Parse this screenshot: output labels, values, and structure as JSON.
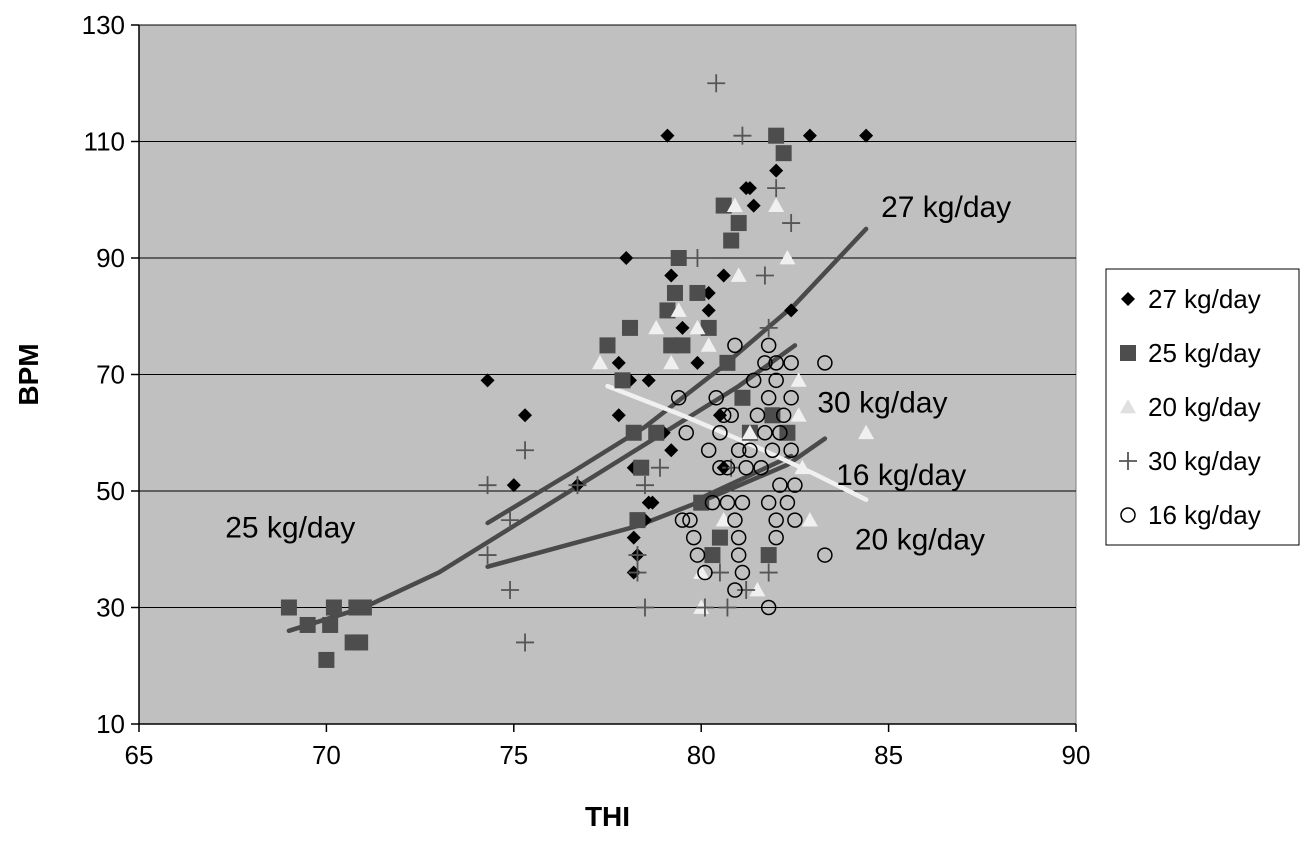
{
  "chart_data": {
    "type": "scatter",
    "title": "",
    "xlabel": "THI",
    "ylabel": "BPM",
    "xlim": [
      65,
      90
    ],
    "ylim": [
      10,
      130
    ],
    "x_ticks": [
      65,
      70,
      75,
      80,
      85,
      90
    ],
    "y_ticks": [
      10,
      30,
      50,
      70,
      90,
      110,
      130
    ],
    "grid": "horizontal",
    "legend_position": "right",
    "plot_background": "#c0c0c0",
    "series": [
      {
        "name": "27 kg/day",
        "marker": "diamond",
        "color": "#000000",
        "points": [
          [
            74.3,
            69
          ],
          [
            75,
            51
          ],
          [
            75.3,
            63
          ],
          [
            76.7,
            51
          ],
          [
            77.8,
            63
          ],
          [
            77.8,
            72
          ],
          [
            78,
            90
          ],
          [
            78.1,
            69
          ],
          [
            78.2,
            54
          ],
          [
            78.2,
            42
          ],
          [
            78.2,
            36
          ],
          [
            78.3,
            39
          ],
          [
            78.5,
            45
          ],
          [
            78.6,
            69
          ],
          [
            78.6,
            48
          ],
          [
            78.7,
            48
          ],
          [
            79,
            60
          ],
          [
            79.1,
            111
          ],
          [
            79.2,
            57
          ],
          [
            79.2,
            87
          ],
          [
            79.5,
            78
          ],
          [
            79.9,
            72
          ],
          [
            80.2,
            84
          ],
          [
            80.2,
            81
          ],
          [
            80.5,
            63
          ],
          [
            80.6,
            87
          ],
          [
            80.6,
            54
          ],
          [
            81.2,
            102
          ],
          [
            81.3,
            102
          ],
          [
            81.4,
            99
          ],
          [
            82,
            105
          ],
          [
            82.4,
            81
          ],
          [
            82.9,
            111
          ],
          [
            84.4,
            111
          ]
        ]
      },
      {
        "name": "25 kg/day",
        "marker": "square",
        "color": "#4d4d4d",
        "points": [
          [
            69,
            30
          ],
          [
            69.5,
            27
          ],
          [
            70,
            21
          ],
          [
            70.1,
            27
          ],
          [
            70.2,
            30
          ],
          [
            70.7,
            24
          ],
          [
            70.8,
            30
          ],
          [
            70.9,
            24
          ],
          [
            71,
            30
          ],
          [
            77.5,
            75
          ],
          [
            77.9,
            69
          ],
          [
            78.1,
            78
          ],
          [
            78.2,
            60
          ],
          [
            78.3,
            45
          ],
          [
            78.4,
            54
          ],
          [
            78.8,
            60
          ],
          [
            79.1,
            81
          ],
          [
            79.2,
            75
          ],
          [
            79.3,
            84
          ],
          [
            79.4,
            90
          ],
          [
            79.5,
            75
          ],
          [
            79.9,
            84
          ],
          [
            80,
            48
          ],
          [
            80.2,
            78
          ],
          [
            80.3,
            39
          ],
          [
            80.5,
            42
          ],
          [
            80.6,
            99
          ],
          [
            80.7,
            72
          ],
          [
            80.8,
            93
          ],
          [
            81,
            96
          ],
          [
            81.1,
            66
          ],
          [
            81.3,
            60
          ],
          [
            81.8,
            39
          ],
          [
            81.9,
            63
          ],
          [
            82,
            111
          ],
          [
            82.2,
            108
          ],
          [
            82.3,
            60
          ]
        ]
      },
      {
        "name": "20 kg/day",
        "marker": "triangle",
        "color": "#f0f0f0",
        "points": [
          [
            77.3,
            72
          ],
          [
            78.8,
            78
          ],
          [
            79.2,
            72
          ],
          [
            79.4,
            81
          ],
          [
            79.9,
            78
          ],
          [
            80,
            36
          ],
          [
            80,
            30
          ],
          [
            80.2,
            75
          ],
          [
            80.6,
            45
          ],
          [
            80.9,
            99
          ],
          [
            81,
            87
          ],
          [
            81.3,
            60
          ],
          [
            81.5,
            33
          ],
          [
            82,
            99
          ],
          [
            82.3,
            90
          ],
          [
            82.6,
            69
          ],
          [
            82.6,
            63
          ],
          [
            82.7,
            54
          ],
          [
            82.9,
            45
          ],
          [
            84.4,
            60
          ]
        ]
      },
      {
        "name": "30 kg/day",
        "marker": "cross",
        "color": "#555555",
        "points": [
          [
            74.3,
            51
          ],
          [
            74.3,
            39
          ],
          [
            74.9,
            33
          ],
          [
            74.9,
            45
          ],
          [
            75.3,
            57
          ],
          [
            75.3,
            24
          ],
          [
            76.7,
            51
          ],
          [
            78.3,
            36
          ],
          [
            78.3,
            39
          ],
          [
            78.5,
            30
          ],
          [
            78.5,
            51
          ],
          [
            78.9,
            54
          ],
          [
            79.9,
            90
          ],
          [
            80.1,
            30
          ],
          [
            80.4,
            120
          ],
          [
            80.5,
            36
          ],
          [
            80.7,
            30
          ],
          [
            80.8,
            54
          ],
          [
            81.1,
            111
          ],
          [
            81.2,
            33
          ],
          [
            81.7,
            87
          ],
          [
            81.8,
            36
          ],
          [
            81.8,
            78
          ],
          [
            82,
            102
          ],
          [
            82.4,
            96
          ]
        ]
      },
      {
        "name": "16 kg/day",
        "marker": "circle",
        "color": "#000000",
        "points": [
          [
            79.4,
            66
          ],
          [
            79.5,
            45
          ],
          [
            79.6,
            60
          ],
          [
            79.7,
            45
          ],
          [
            79.8,
            42
          ],
          [
            79.9,
            39
          ],
          [
            80.1,
            36
          ],
          [
            80.2,
            57
          ],
          [
            80.3,
            48
          ],
          [
            80.4,
            66
          ],
          [
            80.5,
            54
          ],
          [
            80.5,
            60
          ],
          [
            80.6,
            63
          ],
          [
            80.7,
            54
          ],
          [
            80.7,
            48
          ],
          [
            80.8,
            63
          ],
          [
            80.9,
            75
          ],
          [
            80.9,
            45
          ],
          [
            80.9,
            33
          ],
          [
            81,
            57
          ],
          [
            81,
            42
          ],
          [
            81,
            39
          ],
          [
            81.1,
            36
          ],
          [
            81.1,
            48
          ],
          [
            81.2,
            54
          ],
          [
            81.3,
            57
          ],
          [
            81.4,
            69
          ],
          [
            81.5,
            63
          ],
          [
            81.6,
            54
          ],
          [
            81.7,
            72
          ],
          [
            81.7,
            60
          ],
          [
            81.8,
            75
          ],
          [
            81.8,
            66
          ],
          [
            81.8,
            48
          ],
          [
            81.8,
            30
          ],
          [
            81.9,
            57
          ],
          [
            82,
            69
          ],
          [
            82,
            72
          ],
          [
            82,
            45
          ],
          [
            82,
            42
          ],
          [
            82.1,
            51
          ],
          [
            82.1,
            60
          ],
          [
            82.2,
            63
          ],
          [
            82.3,
            48
          ],
          [
            82.4,
            72
          ],
          [
            82.4,
            66
          ],
          [
            82.4,
            57
          ],
          [
            82.5,
            51
          ],
          [
            82.5,
            45
          ],
          [
            83.3,
            72
          ],
          [
            83.3,
            39
          ]
        ]
      }
    ],
    "trendlines": [
      {
        "series": "27 kg/day",
        "color": "#4a4a4a",
        "points": [
          [
            74.3,
            44.5
          ],
          [
            76.5,
            53
          ],
          [
            78.5,
            61
          ],
          [
            80.5,
            71
          ],
          [
            82.5,
            82
          ],
          [
            84.4,
            95
          ]
        ]
      },
      {
        "series": "25 kg/day",
        "color": "#4a4a4a",
        "points": [
          [
            69,
            26
          ],
          [
            71,
            30
          ],
          [
            73,
            36
          ],
          [
            75,
            44
          ],
          [
            77,
            52
          ],
          [
            79,
            60
          ],
          [
            81,
            68
          ],
          [
            82.5,
            75
          ]
        ]
      },
      {
        "series": "20 kg/day",
        "color": "#4a4a4a",
        "points": [
          [
            74.3,
            37
          ],
          [
            76.3,
            40.5
          ],
          [
            78.3,
            44
          ],
          [
            80.3,
            49
          ],
          [
            82.3,
            54.5
          ],
          [
            83.3,
            59
          ]
        ]
      },
      {
        "series": "30 kg/day",
        "color": "#4a4a4a",
        "points": [
          [
            79.9,
            48.5
          ],
          [
            80.9,
            51.5
          ],
          [
            82.4,
            56
          ]
        ]
      },
      {
        "series": "16 kg/day",
        "color": "#f0f0f0",
        "points": [
          [
            77.5,
            68
          ],
          [
            79.5,
            63
          ],
          [
            81.5,
            57.5
          ],
          [
            83,
            53
          ],
          [
            84.4,
            48.5
          ]
        ]
      }
    ],
    "annotations": [
      {
        "text": "27 kg/day",
        "x": 84.8,
        "y": 97
      },
      {
        "text": "25 kg/day",
        "x": 67.3,
        "y": 42
      },
      {
        "text": "30 kg/day",
        "x": 83.1,
        "y": 63.5
      },
      {
        "text": "16 kg/day",
        "x": 83.6,
        "y": 51
      },
      {
        "text": "20 kg/day",
        "x": 84.1,
        "y": 40
      }
    ]
  }
}
